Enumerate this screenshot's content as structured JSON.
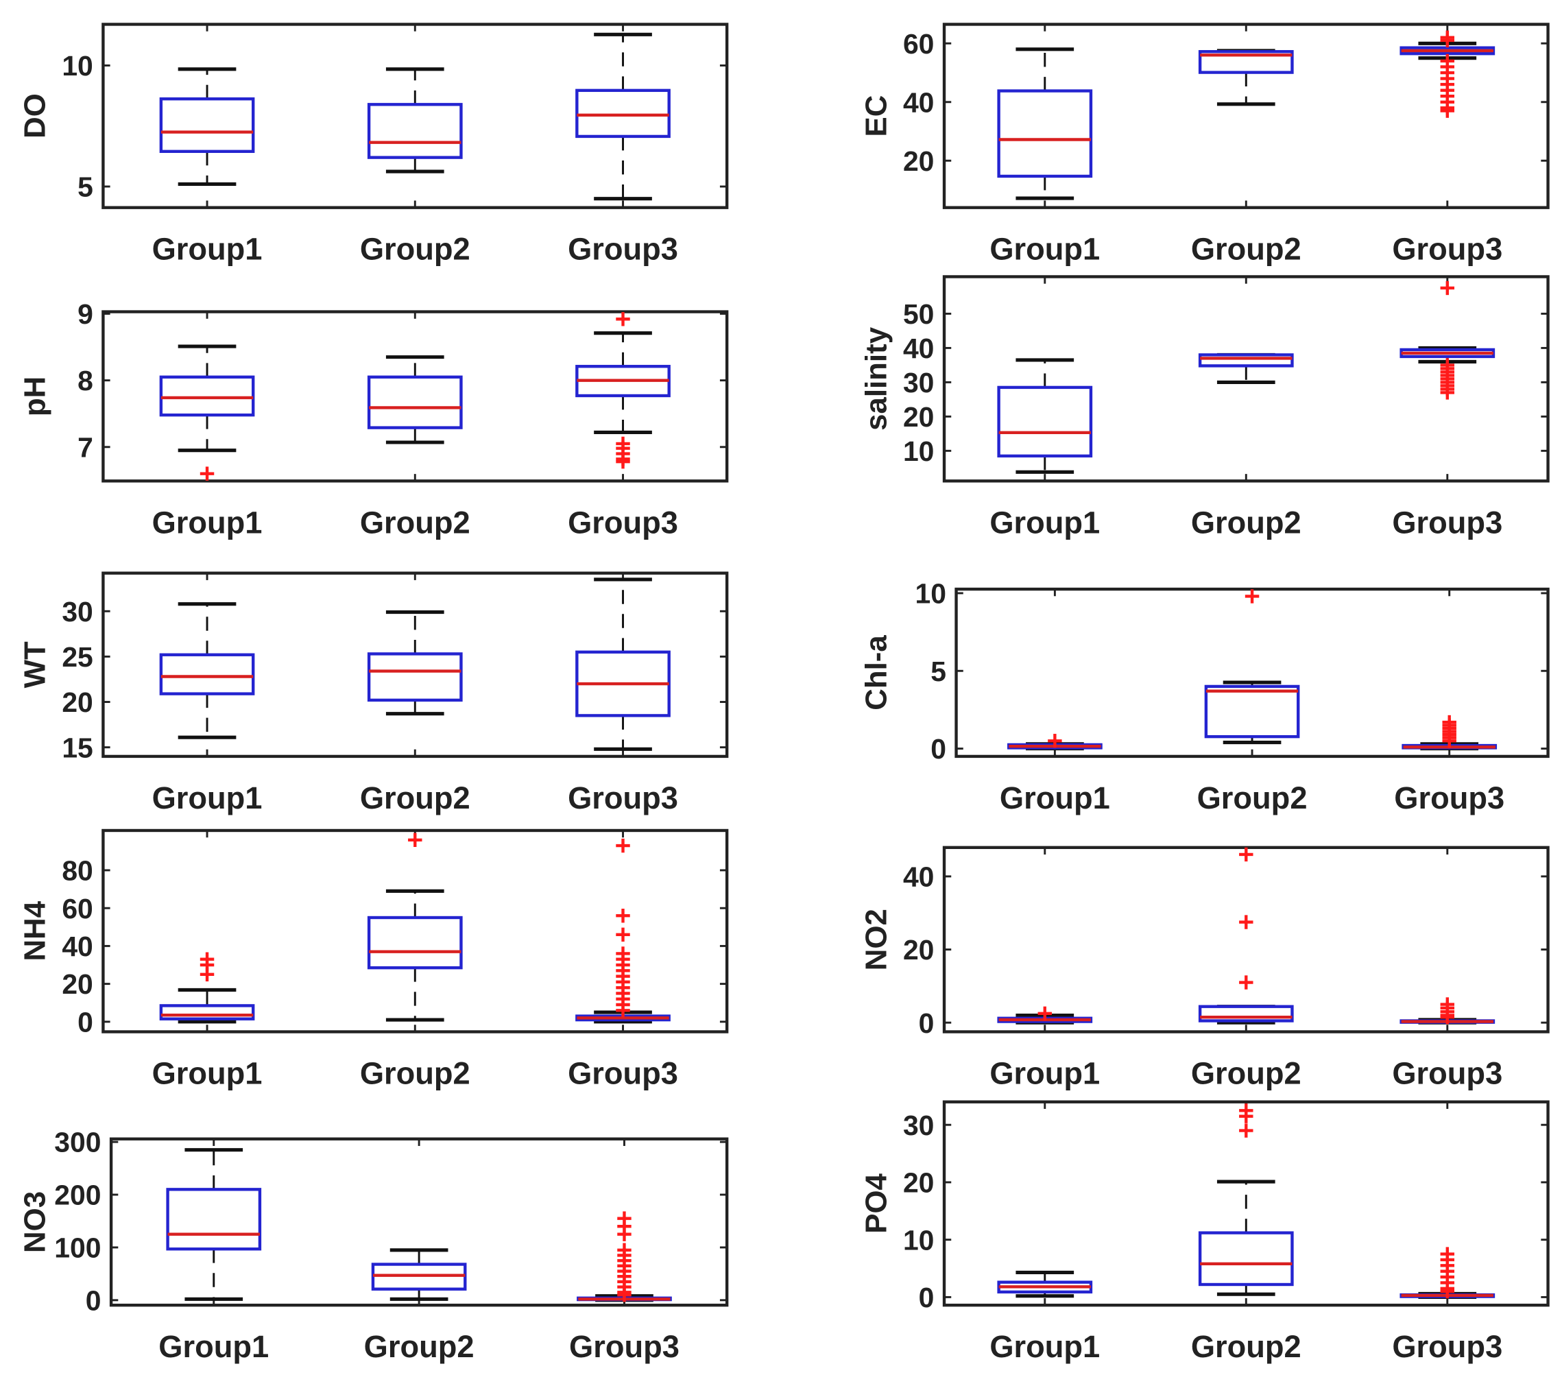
{
  "chart_data": [
    {
      "type": "box",
      "ylabel": "DO",
      "categories": [
        "Group1",
        "Group2",
        "Group3"
      ],
      "ylim": [
        4.13,
        11.7
      ],
      "yticks": [
        5,
        10
      ],
      "groups": [
        {
          "whisker_low": 5.1,
          "q1": 6.45,
          "median": 7.25,
          "q3": 8.62,
          "whisker_high": 9.85,
          "outliers": []
        },
        {
          "whisker_low": 5.62,
          "q1": 6.2,
          "median": 6.82,
          "q3": 8.39,
          "whisker_high": 9.85,
          "outliers": []
        },
        {
          "whisker_low": 4.5,
          "q1": 7.07,
          "median": 7.95,
          "q3": 8.97,
          "whisker_high": 11.28,
          "outliers": []
        }
      ]
    },
    {
      "type": "box",
      "ylabel": "EC",
      "categories": [
        "Group1",
        "Group2",
        "Group3"
      ],
      "ylim": [
        4,
        66.5
      ],
      "yticks": [
        20,
        40,
        60
      ],
      "groups": [
        {
          "whisker_low": 7.2,
          "q1": 14.7,
          "median": 27.2,
          "q3": 43.8,
          "whisker_high": 58,
          "outliers": []
        },
        {
          "whisker_low": 39.3,
          "q1": 50.1,
          "median": 56,
          "q3": 57.2,
          "whisker_high": 57.5,
          "outliers": []
        },
        {
          "whisker_low": 55,
          "q1": 56.5,
          "median": 57.5,
          "q3": 58.5,
          "whisker_high": 60,
          "outliers": [
            62,
            61,
            54,
            52,
            50,
            48,
            46,
            44,
            42,
            40,
            38,
            37
          ]
        }
      ]
    },
    {
      "type": "box",
      "ylabel": "pH",
      "categories": [
        "Group1",
        "Group2",
        "Group3"
      ],
      "ylim": [
        6.49,
        9.03
      ],
      "yticks": [
        7,
        8,
        9
      ],
      "groups": [
        {
          "whisker_low": 6.95,
          "q1": 7.48,
          "median": 7.74,
          "q3": 8.05,
          "whisker_high": 8.51,
          "outliers": [
            6.6
          ]
        },
        {
          "whisker_low": 7.07,
          "q1": 7.29,
          "median": 7.59,
          "q3": 8.05,
          "whisker_high": 8.35,
          "outliers": []
        },
        {
          "whisker_low": 7.22,
          "q1": 7.77,
          "median": 8.0,
          "q3": 8.21,
          "whisker_high": 8.71,
          "outliers": [
            8.92,
            7.05,
            6.98,
            6.9,
            6.82,
            6.78
          ]
        }
      ]
    },
    {
      "type": "box",
      "ylabel": "salinity",
      "categories": [
        "Group1",
        "Group2",
        "Group3"
      ],
      "ylim": [
        1.2,
        60.8
      ],
      "yticks": [
        10,
        20,
        30,
        40,
        50
      ],
      "groups": [
        {
          "whisker_low": 3.8,
          "q1": 8.5,
          "median": 15.3,
          "q3": 28.5,
          "whisker_high": 36.5,
          "outliers": []
        },
        {
          "whisker_low": 30,
          "q1": 34.8,
          "median": 37,
          "q3": 38,
          "whisker_high": 38,
          "outliers": []
        },
        {
          "whisker_low": 36,
          "q1": 37.5,
          "median": 38.5,
          "q3": 39.5,
          "whisker_high": 40,
          "outliers": [
            57.5,
            35,
            34,
            33,
            32,
            31,
            30,
            29,
            28,
            27
          ]
        }
      ]
    },
    {
      "type": "box",
      "ylabel": "WT",
      "categories": [
        "Group1",
        "Group2",
        "Group3"
      ],
      "ylim": [
        14,
        34.2
      ],
      "yticks": [
        15,
        20,
        25,
        30
      ],
      "groups": [
        {
          "whisker_low": 16.1,
          "q1": 20.9,
          "median": 22.8,
          "q3": 25.2,
          "whisker_high": 30.8,
          "outliers": []
        },
        {
          "whisker_low": 18.7,
          "q1": 20.2,
          "median": 23.4,
          "q3": 25.3,
          "whisker_high": 29.9,
          "outliers": []
        },
        {
          "whisker_low": 14.8,
          "q1": 18.5,
          "median": 22.0,
          "q3": 25.5,
          "whisker_high": 33.5,
          "outliers": []
        }
      ]
    },
    {
      "type": "box",
      "ylabel": "Chl-a",
      "categories": [
        "Group1",
        "Group2",
        "Group3"
      ],
      "ylim": [
        -0.5,
        10.26
      ],
      "yticks": [
        0,
        5,
        10
      ],
      "groups": [
        {
          "whisker_low": 0,
          "q1": 0.05,
          "median": 0.15,
          "q3": 0.25,
          "whisker_high": 0.3,
          "outliers": [
            0.5
          ]
        },
        {
          "whisker_low": 0.4,
          "q1": 0.77,
          "median": 3.7,
          "q3": 4.0,
          "whisker_high": 4.26,
          "outliers": [
            9.8
          ]
        },
        {
          "whisker_low": 0,
          "q1": 0.05,
          "median": 0.1,
          "q3": 0.2,
          "whisker_high": 0.3,
          "outliers": [
            1.7,
            1.5,
            1.3,
            1.1,
            0.9,
            0.7,
            0.5
          ]
        }
      ]
    },
    {
      "type": "box",
      "ylabel": "NH4",
      "categories": [
        "Group1",
        "Group2",
        "Group3"
      ],
      "ylim": [
        -5.3,
        101
      ],
      "yticks": [
        0,
        20,
        40,
        60,
        80
      ],
      "groups": [
        {
          "whisker_low": 0,
          "q1": 1.5,
          "median": 3.5,
          "q3": 8.5,
          "whisker_high": 16.8,
          "outliers": [
            25,
            30,
            33
          ]
        },
        {
          "whisker_low": 1,
          "q1": 28.5,
          "median": 37,
          "q3": 55,
          "whisker_high": 69,
          "outliers": [
            96
          ]
        },
        {
          "whisker_low": 0,
          "q1": 1,
          "median": 2,
          "q3": 3,
          "whisker_high": 5,
          "outliers": [
            93,
            56,
            46,
            36,
            33,
            30,
            27,
            24,
            21,
            18,
            15,
            12,
            9,
            6
          ]
        }
      ]
    },
    {
      "type": "box",
      "ylabel": "NO2",
      "categories": [
        "Group1",
        "Group2",
        "Group3"
      ],
      "ylim": [
        -2.5,
        47.9
      ],
      "yticks": [
        0,
        20,
        40
      ],
      "groups": [
        {
          "whisker_low": 0,
          "q1": 0.3,
          "median": 0.8,
          "q3": 1.2,
          "whisker_high": 2,
          "outliers": [
            2.5
          ]
        },
        {
          "whisker_low": 0,
          "q1": 0.5,
          "median": 1.5,
          "q3": 4.4,
          "whisker_high": 4.4,
          "outliers": [
            46,
            27.5,
            11
          ]
        },
        {
          "whisker_low": 0,
          "q1": 0.1,
          "median": 0.3,
          "q3": 0.5,
          "whisker_high": 0.8,
          "outliers": [
            5,
            4,
            3,
            2,
            1.5
          ]
        }
      ]
    },
    {
      "type": "box",
      "ylabel": "NO3",
      "categories": [
        "Group1",
        "Group2",
        "Group3"
      ],
      "ylim": [
        -9.5,
        305.7
      ],
      "yticks": [
        0,
        100,
        200,
        300
      ],
      "groups": [
        {
          "whisker_low": 2,
          "q1": 97,
          "median": 125,
          "q3": 210,
          "whisker_high": 285,
          "outliers": []
        },
        {
          "whisker_low": 2,
          "q1": 21,
          "median": 47,
          "q3": 68,
          "whisker_high": 95,
          "outliers": []
        },
        {
          "whisker_low": 0,
          "q1": 1,
          "median": 2,
          "q3": 4,
          "whisker_high": 8,
          "outliers": [
            155,
            140,
            125,
            95,
            85,
            75,
            65,
            55,
            45,
            35,
            25,
            15,
            10
          ]
        }
      ]
    },
    {
      "type": "box",
      "ylabel": "PO4",
      "categories": [
        "Group1",
        "Group2",
        "Group3"
      ],
      "ylim": [
        -1.4,
        34
      ],
      "yticks": [
        0,
        10,
        20,
        30
      ],
      "groups": [
        {
          "whisker_low": 0.2,
          "q1": 0.9,
          "median": 1.8,
          "q3": 2.6,
          "whisker_high": 4.3,
          "outliers": []
        },
        {
          "whisker_low": 0.5,
          "q1": 2.2,
          "median": 5.8,
          "q3": 11.2,
          "whisker_high": 20.1,
          "outliers": [
            32.5,
            31.5,
            29
          ]
        },
        {
          "whisker_low": 0,
          "q1": 0.1,
          "median": 0.3,
          "q3": 0.4,
          "whisker_high": 0.6,
          "outliers": [
            7.5,
            6.5,
            5.5,
            4.5,
            3.5,
            2.5,
            1.5,
            1
          ]
        }
      ]
    }
  ],
  "colors": {
    "box": "#2424d0",
    "median": "#d82020",
    "whisker": "#111111",
    "outlier": "#ff1a1a",
    "axis": "#222222"
  }
}
